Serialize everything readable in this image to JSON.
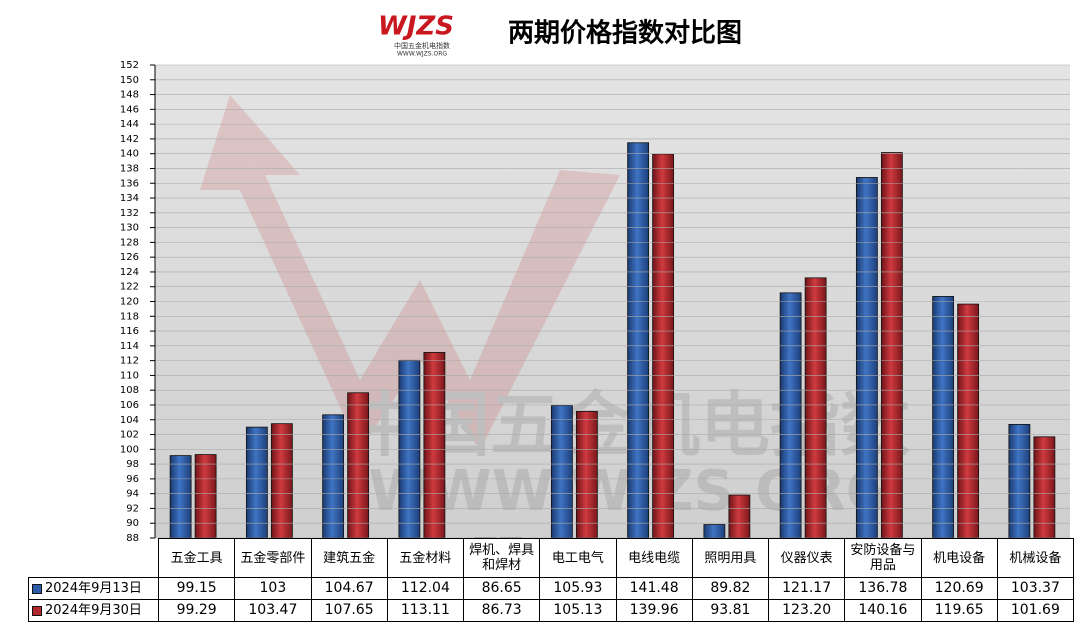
{
  "chart_data": {
    "type": "bar",
    "title": "两期价格指数对比图",
    "logo": {
      "mark": "WJZS",
      "name": "中国五金机电指数",
      "url": "WWW.WJZS.ORG"
    },
    "categories": [
      "五金工具",
      "五金零部件",
      "建筑五金",
      "五金材料",
      "焊机、焊具和焊材",
      "电工电气",
      "电线电缆",
      "照明用具",
      "仪器仪表",
      "安防设备与用品",
      "机电设备",
      "机械设备"
    ],
    "series": [
      {
        "name": "2024年9月13日",
        "color": "#2d5ca6",
        "values": [
          99.15,
          103,
          104.67,
          112.04,
          86.65,
          105.93,
          141.48,
          89.82,
          121.17,
          136.78,
          120.69,
          103.37
        ]
      },
      {
        "name": "2024年9月30日",
        "color": "#b3282d",
        "values": [
          99.29,
          103.47,
          107.65,
          113.11,
          86.73,
          105.13,
          139.96,
          93.81,
          123.2,
          140.16,
          119.65,
          101.69
        ],
        "value_labels": [
          "99.29",
          "103.47",
          "107.65",
          "113.11",
          "86.73",
          "105.13",
          "139.96",
          "93.81",
          "123.20",
          "140.16",
          "119.65",
          "101.69"
        ]
      }
    ],
    "ylim": [
      88,
      152
    ],
    "yticks": [
      88,
      90,
      92,
      94,
      96,
      98,
      100,
      102,
      104,
      106,
      108,
      110,
      112,
      114,
      116,
      118,
      120,
      122,
      124,
      126,
      128,
      130,
      132,
      134,
      136,
      138,
      140,
      142,
      144,
      146,
      148,
      150,
      152
    ],
    "grid": true
  }
}
